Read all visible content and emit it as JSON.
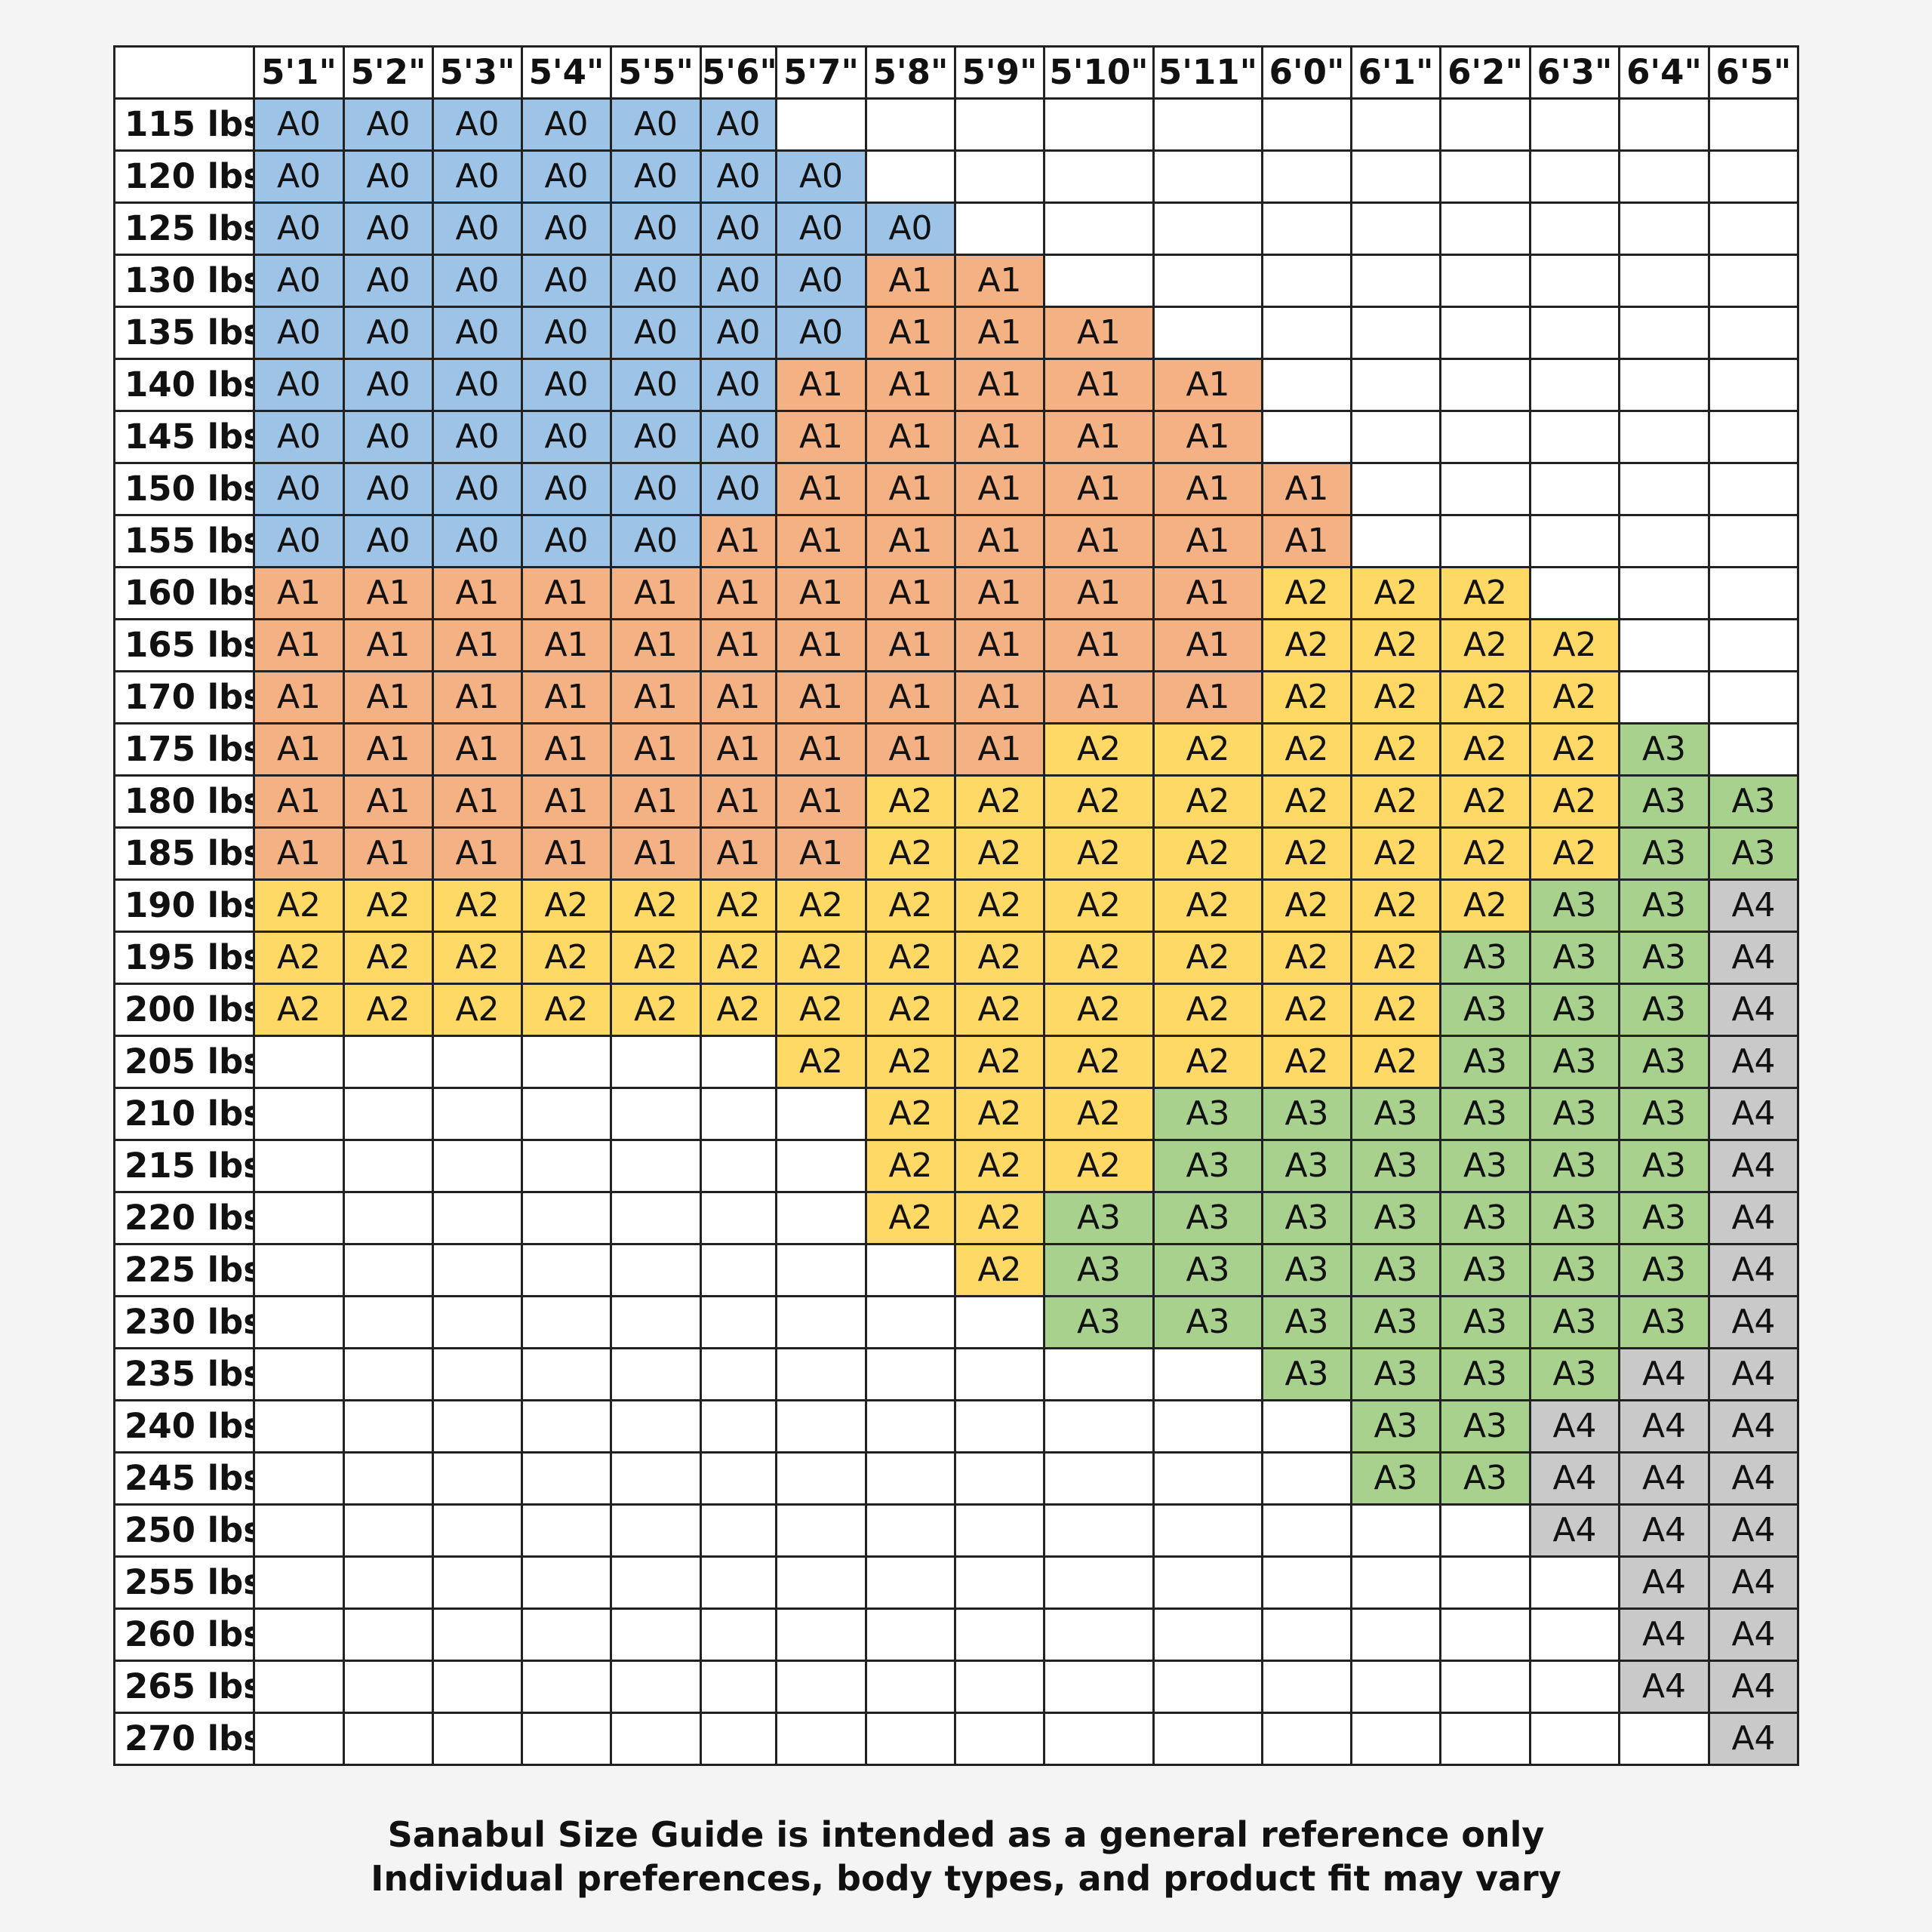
{
  "colors": {
    "A0": "#9dc3e6",
    "A1": "#f4b183",
    "A2": "#ffd966",
    "A3": "#a9d18e",
    "A4": "#c9c9c9"
  },
  "chart_data": {
    "type": "table",
    "corner": "",
    "columns": [
      "5'1\"",
      "5'2\"",
      "5'3\"",
      "5'4\"",
      "5'5\"",
      "5'6\"",
      "5'7\"",
      "5'8\"",
      "5'9\"",
      "5'10\"",
      "5'11\"",
      "6'0\"",
      "6'1\"",
      "6'2\"",
      "6'3\"",
      "6'4\"",
      "6'5\""
    ],
    "rows": [
      {
        "label": "115 lbs",
        "cells": [
          "A0",
          "A0",
          "A0",
          "A0",
          "A0",
          "A0",
          "",
          "",
          "",
          "",
          "",
          "",
          "",
          "",
          "",
          "",
          ""
        ]
      },
      {
        "label": "120 lbs",
        "cells": [
          "A0",
          "A0",
          "A0",
          "A0",
          "A0",
          "A0",
          "A0",
          "",
          "",
          "",
          "",
          "",
          "",
          "",
          "",
          "",
          ""
        ]
      },
      {
        "label": "125 lbs",
        "cells": [
          "A0",
          "A0",
          "A0",
          "A0",
          "A0",
          "A0",
          "A0",
          "A0",
          "",
          "",
          "",
          "",
          "",
          "",
          "",
          "",
          ""
        ]
      },
      {
        "label": "130 lbs",
        "cells": [
          "A0",
          "A0",
          "A0",
          "A0",
          "A0",
          "A0",
          "A0",
          "A1",
          "A1",
          "",
          "",
          "",
          "",
          "",
          "",
          "",
          ""
        ]
      },
      {
        "label": "135 lbs",
        "cells": [
          "A0",
          "A0",
          "A0",
          "A0",
          "A0",
          "A0",
          "A0",
          "A1",
          "A1",
          "A1",
          "",
          "",
          "",
          "",
          "",
          "",
          ""
        ]
      },
      {
        "label": "140 lbs",
        "cells": [
          "A0",
          "A0",
          "A0",
          "A0",
          "A0",
          "A0",
          "A1",
          "A1",
          "A1",
          "A1",
          "A1",
          "",
          "",
          "",
          "",
          "",
          ""
        ]
      },
      {
        "label": "145 lbs",
        "cells": [
          "A0",
          "A0",
          "A0",
          "A0",
          "A0",
          "A0",
          "A1",
          "A1",
          "A1",
          "A1",
          "A1",
          "",
          "",
          "",
          "",
          "",
          ""
        ]
      },
      {
        "label": "150 lbs",
        "cells": [
          "A0",
          "A0",
          "A0",
          "A0",
          "A0",
          "A0",
          "A1",
          "A1",
          "A1",
          "A1",
          "A1",
          "A1",
          "",
          "",
          "",
          "",
          ""
        ]
      },
      {
        "label": "155 lbs",
        "cells": [
          "A0",
          "A0",
          "A0",
          "A0",
          "A0",
          "A1",
          "A1",
          "A1",
          "A1",
          "A1",
          "A1",
          "A1",
          "",
          "",
          "",
          "",
          ""
        ]
      },
      {
        "label": "160 lbs",
        "cells": [
          "A1",
          "A1",
          "A1",
          "A1",
          "A1",
          "A1",
          "A1",
          "A1",
          "A1",
          "A1",
          "A1",
          "A2",
          "A2",
          "A2",
          "",
          "",
          ""
        ]
      },
      {
        "label": "165 lbs",
        "cells": [
          "A1",
          "A1",
          "A1",
          "A1",
          "A1",
          "A1",
          "A1",
          "A1",
          "A1",
          "A1",
          "A1",
          "A2",
          "A2",
          "A2",
          "A2",
          "",
          ""
        ]
      },
      {
        "label": "170 lbs",
        "cells": [
          "A1",
          "A1",
          "A1",
          "A1",
          "A1",
          "A1",
          "A1",
          "A1",
          "A1",
          "A1",
          "A1",
          "A2",
          "A2",
          "A2",
          "A2",
          "",
          ""
        ]
      },
      {
        "label": "175 lbs",
        "cells": [
          "A1",
          "A1",
          "A1",
          "A1",
          "A1",
          "A1",
          "A1",
          "A1",
          "A1",
          "A2",
          "A2",
          "A2",
          "A2",
          "A2",
          "A2",
          "A3",
          ""
        ]
      },
      {
        "label": "180 lbs",
        "cells": [
          "A1",
          "A1",
          "A1",
          "A1",
          "A1",
          "A1",
          "A1",
          "A2",
          "A2",
          "A2",
          "A2",
          "A2",
          "A2",
          "A2",
          "A2",
          "A3",
          "A3"
        ]
      },
      {
        "label": "185 lbs",
        "cells": [
          "A1",
          "A1",
          "A1",
          "A1",
          "A1",
          "A1",
          "A1",
          "A2",
          "A2",
          "A2",
          "A2",
          "A2",
          "A2",
          "A2",
          "A2",
          "A3",
          "A3"
        ]
      },
      {
        "label": "190 lbs",
        "cells": [
          "A2",
          "A2",
          "A2",
          "A2",
          "A2",
          "A2",
          "A2",
          "A2",
          "A2",
          "A2",
          "A2",
          "A2",
          "A2",
          "A2",
          "A3",
          "A3",
          "A4"
        ]
      },
      {
        "label": "195 lbs",
        "cells": [
          "A2",
          "A2",
          "A2",
          "A2",
          "A2",
          "A2",
          "A2",
          "A2",
          "A2",
          "A2",
          "A2",
          "A2",
          "A2",
          "A3",
          "A3",
          "A3",
          "A4"
        ]
      },
      {
        "label": "200 lbs",
        "cells": [
          "A2",
          "A2",
          "A2",
          "A2",
          "A2",
          "A2",
          "A2",
          "A2",
          "A2",
          "A2",
          "A2",
          "A2",
          "A2",
          "A3",
          "A3",
          "A3",
          "A4"
        ]
      },
      {
        "label": "205 lbs",
        "cells": [
          "",
          "",
          "",
          "",
          "",
          "",
          "A2",
          "A2",
          "A2",
          "A2",
          "A2",
          "A2",
          "A2",
          "A3",
          "A3",
          "A3",
          "A4"
        ]
      },
      {
        "label": "210 lbs",
        "cells": [
          "",
          "",
          "",
          "",
          "",
          "",
          "",
          "A2",
          "A2",
          "A2",
          "A3",
          "A3",
          "A3",
          "A3",
          "A3",
          "A3",
          "A4"
        ]
      },
      {
        "label": "215 lbs",
        "cells": [
          "",
          "",
          "",
          "",
          "",
          "",
          "",
          "A2",
          "A2",
          "A2",
          "A3",
          "A3",
          "A3",
          "A3",
          "A3",
          "A3",
          "A4"
        ]
      },
      {
        "label": "220 lbs",
        "cells": [
          "",
          "",
          "",
          "",
          "",
          "",
          "",
          "A2",
          "A2",
          "A3",
          "A3",
          "A3",
          "A3",
          "A3",
          "A3",
          "A3",
          "A4"
        ]
      },
      {
        "label": "225 lbs",
        "cells": [
          "",
          "",
          "",
          "",
          "",
          "",
          "",
          "",
          "A2",
          "A3",
          "A3",
          "A3",
          "A3",
          "A3",
          "A3",
          "A3",
          "A4"
        ]
      },
      {
        "label": "230 lbs",
        "cells": [
          "",
          "",
          "",
          "",
          "",
          "",
          "",
          "",
          "",
          "A3",
          "A3",
          "A3",
          "A3",
          "A3",
          "A3",
          "A3",
          "A4"
        ]
      },
      {
        "label": "235 lbs",
        "cells": [
          "",
          "",
          "",
          "",
          "",
          "",
          "",
          "",
          "",
          "",
          "",
          "A3",
          "A3",
          "A3",
          "A3",
          "A4",
          "A4"
        ]
      },
      {
        "label": "240 lbs",
        "cells": [
          "",
          "",
          "",
          "",
          "",
          "",
          "",
          "",
          "",
          "",
          "",
          "",
          "A3",
          "A3",
          "A4",
          "A4",
          "A4"
        ]
      },
      {
        "label": "245 lbs",
        "cells": [
          "",
          "",
          "",
          "",
          "",
          "",
          "",
          "",
          "",
          "",
          "",
          "",
          "A3",
          "A3",
          "A4",
          "A4",
          "A4"
        ]
      },
      {
        "label": "250 lbs",
        "cells": [
          "",
          "",
          "",
          "",
          "",
          "",
          "",
          "",
          "",
          "",
          "",
          "",
          "",
          "",
          "A4",
          "A4",
          "A4"
        ]
      },
      {
        "label": "255 lbs",
        "cells": [
          "",
          "",
          "",
          "",
          "",
          "",
          "",
          "",
          "",
          "",
          "",
          "",
          "",
          "",
          "",
          "A4",
          "A4"
        ]
      },
      {
        "label": "260 lbs",
        "cells": [
          "",
          "",
          "",
          "",
          "",
          "",
          "",
          "",
          "",
          "",
          "",
          "",
          "",
          "",
          "",
          "A4",
          "A4"
        ]
      },
      {
        "label": "265 lbs",
        "cells": [
          "",
          "",
          "",
          "",
          "",
          "",
          "",
          "",
          "",
          "",
          "",
          "",
          "",
          "",
          "",
          "A4",
          "A4"
        ]
      },
      {
        "label": "270 lbs",
        "cells": [
          "",
          "",
          "",
          "",
          "",
          "",
          "",
          "",
          "",
          "",
          "",
          "",
          "",
          "",
          "",
          "",
          "A4"
        ]
      }
    ]
  },
  "footer": {
    "line1": "Sanabul Size Guide is intended as a general reference only",
    "line2": "Individual preferences, body types, and product fit may vary"
  }
}
